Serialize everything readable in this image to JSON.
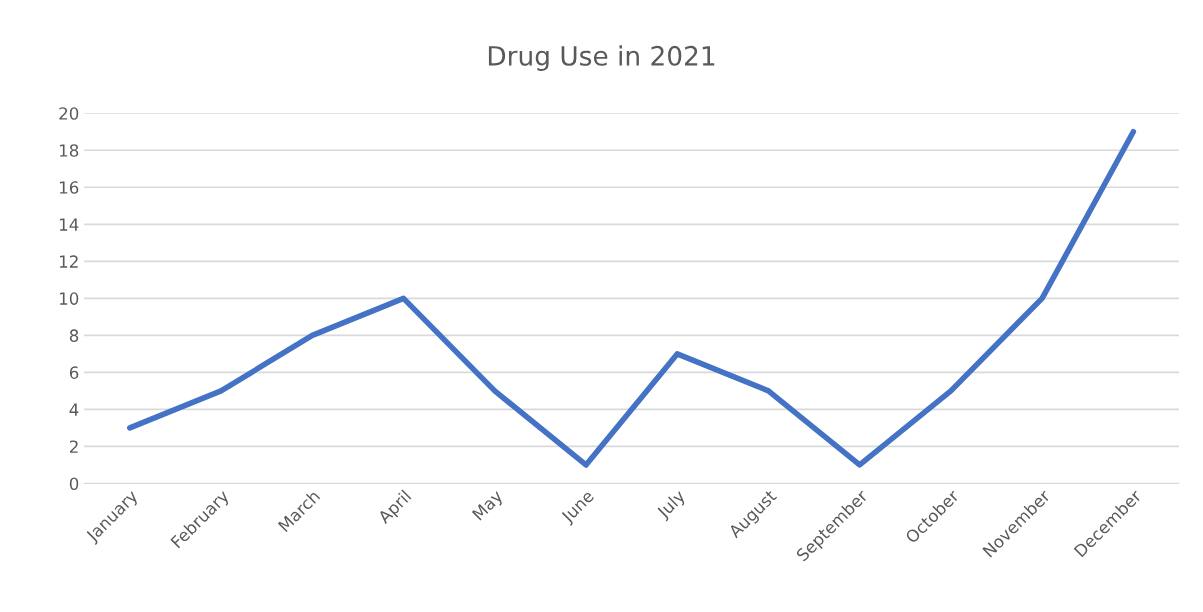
{
  "chart_data": {
    "type": "line",
    "title": "Drug Use in 2021",
    "categories": [
      "January",
      "February",
      "March",
      "April",
      "May",
      "June",
      "July",
      "August",
      "September",
      "October",
      "November",
      "December"
    ],
    "series": [
      {
        "color": "#4472c4",
        "values": [
          3,
          5,
          8,
          10,
          5,
          1,
          7,
          5,
          1,
          5,
          10,
          19
        ]
      }
    ],
    "ylim": [
      0,
      20
    ],
    "yticks": [
      0,
      2,
      4,
      6,
      8,
      10,
      12,
      14,
      16,
      18,
      20
    ],
    "grid": "y",
    "legend": false,
    "marker": "none",
    "line_style": "solid"
  }
}
